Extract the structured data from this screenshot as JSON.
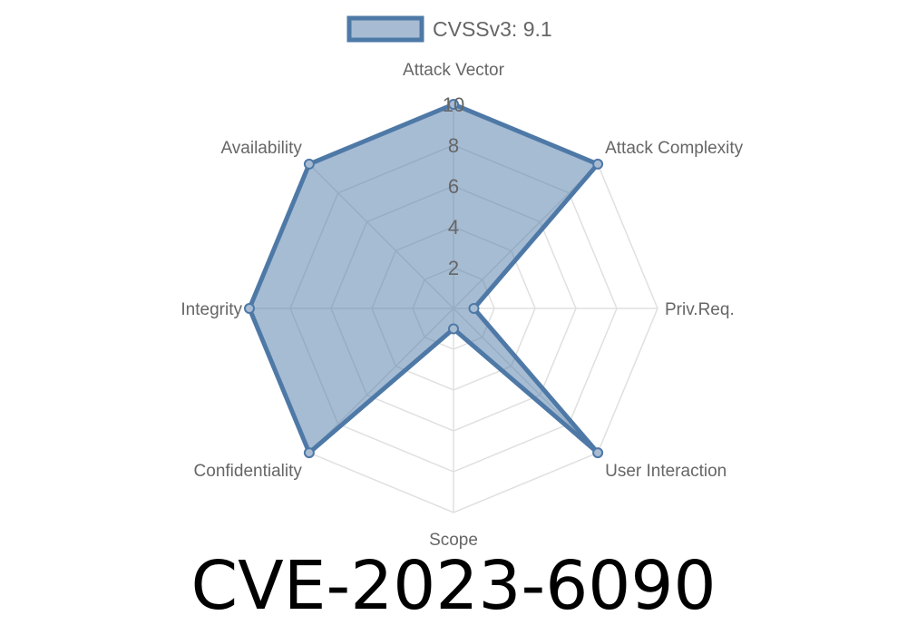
{
  "chart_data": {
    "type": "radar",
    "title": "CVE-2023-6090",
    "axes": [
      "Attack Vector",
      "Attack Complexity",
      "Priv.Req.",
      "User Interaction",
      "Scope",
      "Confidentiality",
      "Integrity",
      "Availability"
    ],
    "series": [
      {
        "name": "CVSSv3: 9.1",
        "values": [
          10,
          10,
          1,
          10,
          1,
          10,
          10,
          10
        ]
      }
    ],
    "r_range": [
      0,
      10
    ],
    "ticks": [
      "2",
      "4",
      "6",
      "8",
      "10"
    ],
    "tick_values": [
      2,
      4,
      6,
      8,
      10
    ],
    "grid": true,
    "legend_position": "top",
    "colors": {
      "stroke": "#4e79a7",
      "fill": "#a7bcd3",
      "grid": "#e0e0e0"
    }
  }
}
